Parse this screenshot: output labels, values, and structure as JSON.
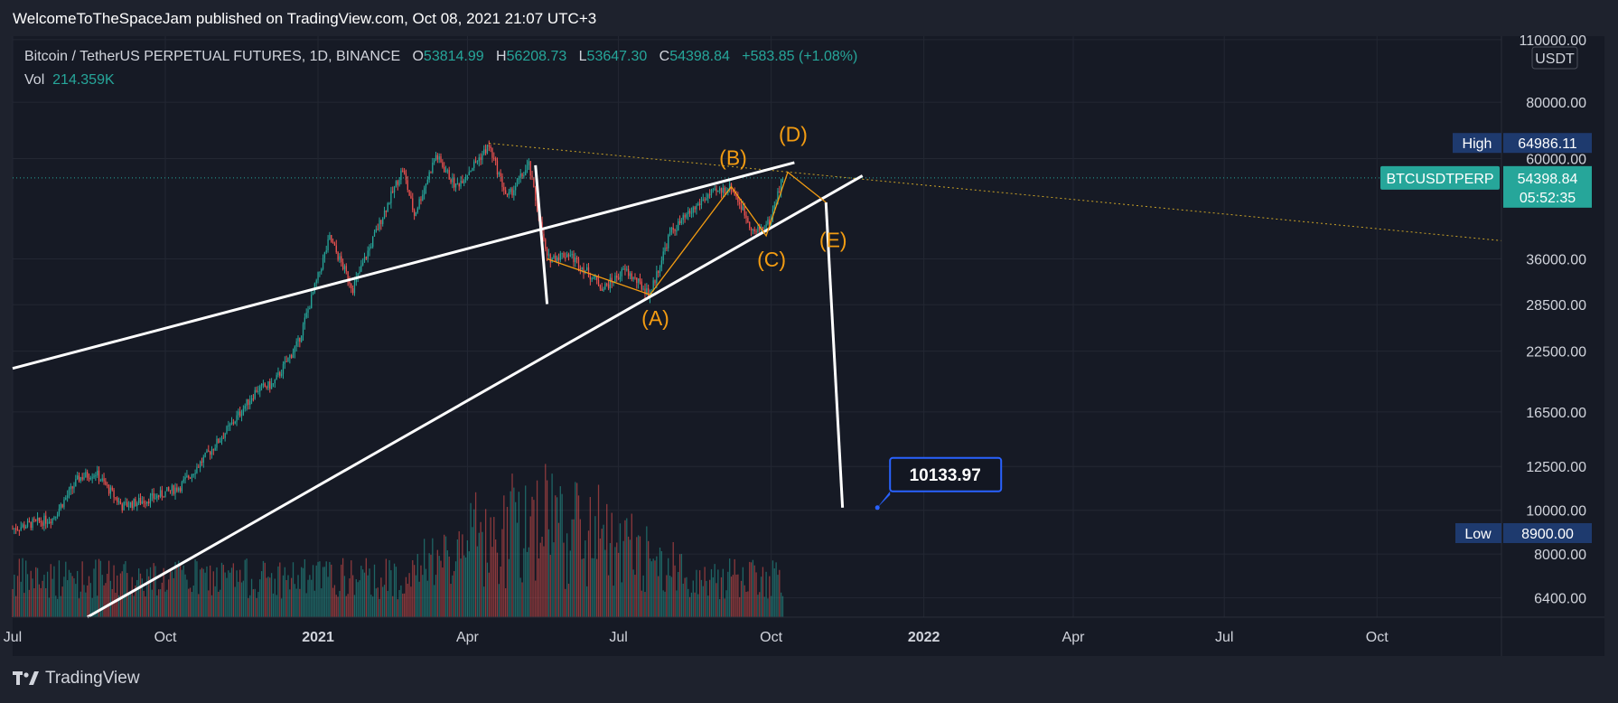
{
  "header": {
    "published_by": "WelcomeToTheSpaceJam published on TradingView.com, Oct 08, 2021 21:07 UTC+3"
  },
  "legend": {
    "symbol": "Bitcoin / TetherUS PERPETUAL FUTURES, 1D, BINANCE",
    "o_label": "O",
    "o_value": "53814.99",
    "h_label": "H",
    "h_value": "56208.73",
    "l_label": "L",
    "l_value": "53647.30",
    "c_label": "C",
    "c_value": "54398.84",
    "change": "+583.85 (+1.08%)",
    "vol_label": "Vol",
    "vol_value": "214.359K"
  },
  "price_axis": {
    "currency": "USDT",
    "high_label": "High",
    "high_value": "64986.11",
    "low_label": "Low",
    "low_value": "8900.00",
    "symbol_tag": "BTCUSDTPERP",
    "last_price": "54398.84",
    "countdown": "05:52:35"
  },
  "target_label": "10133.97",
  "footer": {
    "brand": "TradingView"
  },
  "colors": {
    "up": "#26a69a",
    "down": "#ef5350",
    "wave": "#f39c12",
    "target_border": "#2962ff",
    "tag": "#26a69a",
    "highlow": "#1e3a6e"
  },
  "chart_data": {
    "type": "candlestick",
    "scale": "log",
    "ylim": [
      5800,
      112000
    ],
    "yticks": [
      "110000.00",
      "80000.00",
      "60000.00",
      "36000.00",
      "28500.00",
      "22500.00",
      "16500.00",
      "12500.00",
      "10000.00",
      "8000.00",
      "6400.00"
    ],
    "yticks_values": [
      110000,
      80000,
      60000,
      36000,
      28500,
      22500,
      16500,
      12500,
      10000,
      8000,
      6400
    ],
    "xticks": [
      "Jul",
      "Oct",
      "2021",
      "Apr",
      "Jul",
      "Oct",
      "2022",
      "Apr",
      "Jul",
      "Oct"
    ],
    "xrange": [
      "2020-07-01",
      "2022-12-15"
    ],
    "xticks_dates": [
      "2020-07-01",
      "2020-10-01",
      "2021-01-01",
      "2021-04-01",
      "2021-07-01",
      "2021-10-01",
      "2022-01-01",
      "2022-04-01",
      "2022-07-01",
      "2022-10-01"
    ],
    "price_path": [
      [
        "2020-07-01",
        9100
      ],
      [
        "2020-07-25",
        9600
      ],
      [
        "2020-08-10",
        11800
      ],
      [
        "2020-08-20",
        12100
      ],
      [
        "2020-09-05",
        10200
      ],
      [
        "2020-09-25",
        10700
      ],
      [
        "2020-10-10",
        11300
      ],
      [
        "2020-10-25",
        13100
      ],
      [
        "2020-11-10",
        15500
      ],
      [
        "2020-11-25",
        18500
      ],
      [
        "2020-12-05",
        19000
      ],
      [
        "2020-12-20",
        23500
      ],
      [
        "2021-01-08",
        40000
      ],
      [
        "2021-01-22",
        31000
      ],
      [
        "2021-02-08",
        44000
      ],
      [
        "2021-02-21",
        57000
      ],
      [
        "2021-02-28",
        45000
      ],
      [
        "2021-03-13",
        61000
      ],
      [
        "2021-03-25",
        52000
      ],
      [
        "2021-04-14",
        64000
      ],
      [
        "2021-04-25",
        49000
      ],
      [
        "2021-05-08",
        58000
      ],
      [
        "2021-05-19",
        36000
      ],
      [
        "2021-06-01",
        37000
      ],
      [
        "2021-06-22",
        31000
      ],
      [
        "2021-07-05",
        34000
      ],
      [
        "2021-07-20",
        30000
      ],
      [
        "2021-08-01",
        41000
      ],
      [
        "2021-08-23",
        49500
      ],
      [
        "2021-09-07",
        52000
      ],
      [
        "2021-09-21",
        41000
      ],
      [
        "2021-09-30",
        43500
      ],
      [
        "2021-10-08",
        54398
      ]
    ],
    "wave_labels": [
      {
        "label": "(A)",
        "date": "2021-07-20",
        "price": 30000
      },
      {
        "label": "(B)",
        "date": "2021-09-07",
        "price": 52000
      },
      {
        "label": "(C)",
        "date": "2021-09-28",
        "price": 40500
      },
      {
        "label": "(D)",
        "date": "2021-10-11",
        "price": 56000
      },
      {
        "label": "(E)",
        "date": "2021-11-03",
        "price": 46000
      }
    ],
    "projection_target": 10133.97
  }
}
